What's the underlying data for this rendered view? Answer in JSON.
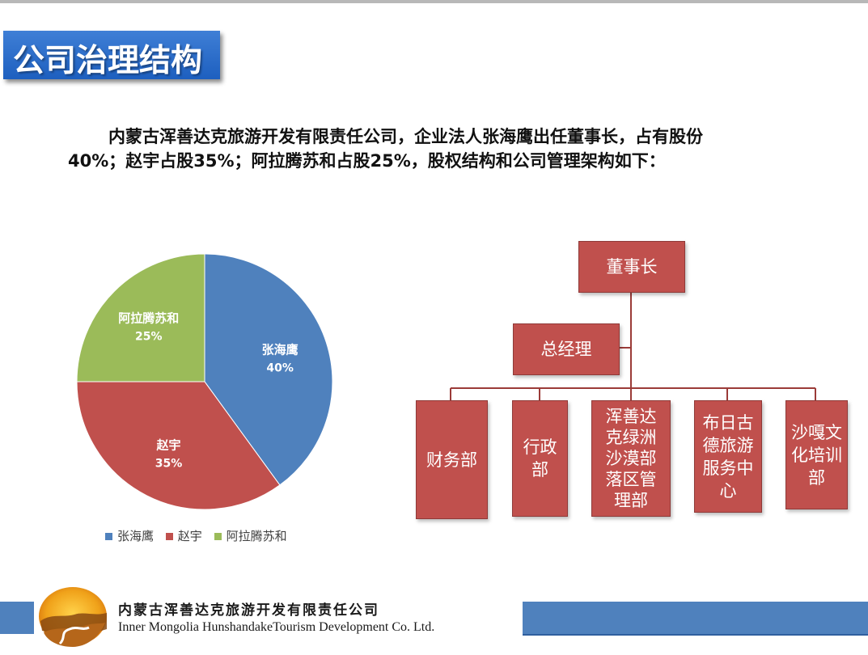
{
  "slide": {
    "title": "公司治理结构",
    "intro_line1": "内蒙古浑善达克旅游开发有限责任公司，企业法人张海鹰出任董事长，占有股份",
    "intro_line2": "40%；赵宇占股35%；阿拉腾苏和占股25%，股权结构和公司管理架构如下："
  },
  "chart_data": {
    "type": "pie",
    "title": "",
    "labels": [
      "张海鹰",
      "赵宇",
      "阿拉腾苏和"
    ],
    "values": [
      40,
      35,
      25
    ],
    "value_labels": [
      "40%",
      "35%",
      "25%"
    ],
    "colors": [
      "#4f81bd",
      "#c0504d",
      "#9bbb59"
    ],
    "legend": "bottom"
  },
  "org": {
    "chairman": [
      "董事长"
    ],
    "general_manager": [
      "总经理"
    ],
    "departments": [
      {
        "lines": [
          "财务部"
        ]
      },
      {
        "lines": [
          "行政",
          "部"
        ]
      },
      {
        "lines": [
          "浑善达",
          "克绿洲",
          "沙漠部",
          "落区管",
          "理部"
        ]
      },
      {
        "lines": [
          "布日古",
          "德旅游",
          "服务中",
          "心"
        ]
      },
      {
        "lines": [
          "沙嘎文",
          "化培训",
          "部"
        ]
      }
    ],
    "box_color": "#c0504d",
    "line_color": "#9b3b38"
  },
  "footer": {
    "company_cn": "内蒙古浑善达克旅游开发有限责任公司",
    "company_en": "Inner Mongolia HunshandakeTourism Development Co. Ltd."
  }
}
